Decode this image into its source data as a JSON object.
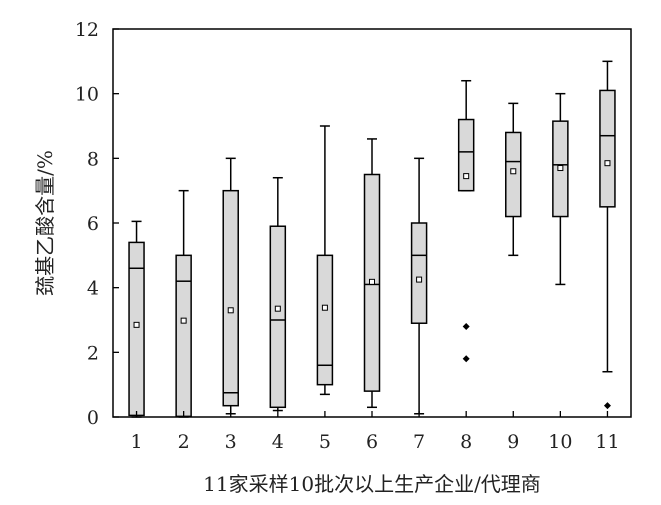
{
  "chart_data": {
    "type": "boxplot",
    "title": "",
    "xlabel": "11家采样10批次以上生产企业/代理商",
    "ylabel": "巯基乙酸含量/%",
    "ylim": [
      0,
      12
    ],
    "yticks": [
      0,
      2,
      4,
      6,
      8,
      10,
      12
    ],
    "grid": false,
    "legend": "none",
    "categories": [
      "1",
      "2",
      "3",
      "4",
      "5",
      "6",
      "7",
      "8",
      "9",
      "10",
      "11"
    ],
    "boxes": [
      {
        "min": 0.0,
        "q1": 0.05,
        "median": 4.6,
        "q3": 5.4,
        "max": 6.05,
        "mean": 2.85,
        "outliers": []
      },
      {
        "min": 0.0,
        "q1": 0.02,
        "median": 4.2,
        "q3": 5.0,
        "max": 7.0,
        "mean": 2.98,
        "outliers": []
      },
      {
        "min": 0.1,
        "q1": 0.35,
        "median": 0.75,
        "q3": 7.0,
        "max": 8.0,
        "mean": 3.3,
        "outliers": []
      },
      {
        "min": 0.2,
        "q1": 0.3,
        "median": 3.0,
        "q3": 5.9,
        "max": 7.4,
        "mean": 3.35,
        "outliers": []
      },
      {
        "min": 0.7,
        "q1": 1.0,
        "median": 1.6,
        "q3": 5.0,
        "max": 9.0,
        "mean": 3.38,
        "outliers": []
      },
      {
        "min": 0.3,
        "q1": 0.8,
        "median": 4.1,
        "q3": 7.5,
        "max": 8.6,
        "mean": 4.18,
        "outliers": []
      },
      {
        "min": 0.1,
        "q1": 2.9,
        "median": 5.0,
        "q3": 6.0,
        "max": 8.0,
        "mean": 4.25,
        "outliers": []
      },
      {
        "min": 7.0,
        "q1": 7.0,
        "median": 8.2,
        "q3": 9.2,
        "max": 10.4,
        "mean": 7.45,
        "outliers": [
          2.8,
          1.8
        ]
      },
      {
        "min": 5.0,
        "q1": 6.2,
        "median": 7.9,
        "q3": 8.8,
        "max": 9.7,
        "mean": 7.6,
        "outliers": []
      },
      {
        "min": 4.1,
        "q1": 6.2,
        "median": 7.8,
        "q3": 9.15,
        "max": 10.0,
        "mean": 7.7,
        "outliers": []
      },
      {
        "min": 1.4,
        "q1": 6.5,
        "median": 8.7,
        "q3": 10.1,
        "max": 11.0,
        "mean": 7.85,
        "outliers": [
          0.35
        ]
      }
    ],
    "colors": {
      "box_fill": "#d9d9d9",
      "stroke": "#000000",
      "text": "#222222"
    }
  }
}
